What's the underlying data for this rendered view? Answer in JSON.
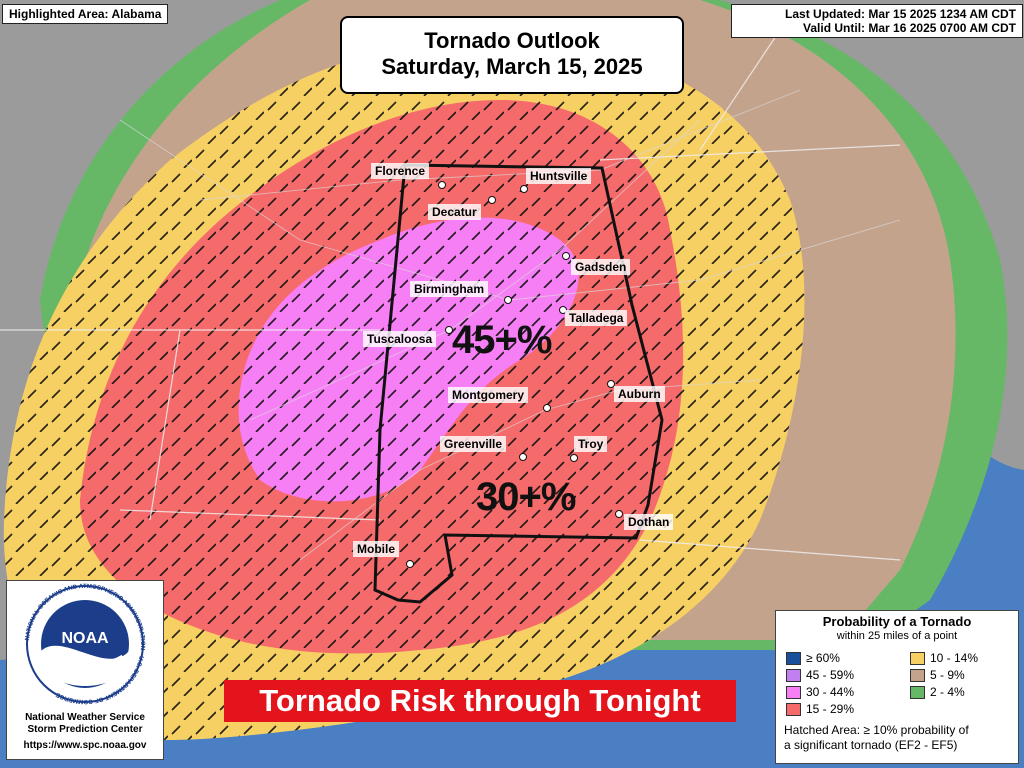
{
  "header": {
    "highlighted_area": "Highlighted Area: Alabama",
    "last_updated": "Last Updated: Mar 15 2025 1234 AM CDT",
    "valid_until": "Valid Until: Mar 16 2025 0700 AM CDT"
  },
  "title": {
    "line1": "Tornado Outlook",
    "line2": "Saturday, March 15, 2025"
  },
  "cities": {
    "florence": "Florence",
    "huntsville": "Huntsville",
    "decatur": "Decatur",
    "gadsden": "Gadsden",
    "birmingham": "Birmingham",
    "talladega": "Talladega",
    "tuscaloosa": "Tuscaloosa",
    "montgomery": "Montgomery",
    "auburn": "Auburn",
    "greenville": "Greenville",
    "troy": "Troy",
    "dothan": "Dothan",
    "mobile": "Mobile"
  },
  "risk_labels": {
    "high": "45+%",
    "moderate": "30+%"
  },
  "logo_panel": {
    "noaa": "NOAA",
    "seal_text": "NATIONAL OCEANIC AND ATMOSPHERIC ADMINISTRATION · U.S. DEPARTMENT OF COMMERCE",
    "org_line1": "National Weather Service",
    "org_line2": "Storm Prediction Center",
    "url": "https://www.spc.noaa.gov"
  },
  "banner": {
    "text": "Tornado Risk through Tonight"
  },
  "legend": {
    "title": "Probability of a Tornado",
    "subtitle": "within 25 miles of a point",
    "items": [
      {
        "label": "≥ 60%",
        "color": "#1a4f9c"
      },
      {
        "label": "45 - 59%",
        "color": "#c27ff0"
      },
      {
        "label": "30 - 44%",
        "color": "#f77ff5"
      },
      {
        "label": "15 - 29%",
        "color": "#f56a6a"
      },
      {
        "label": "10 - 14%",
        "color": "#f7d064"
      },
      {
        "label": "5 - 9%",
        "color": "#c4a38d"
      },
      {
        "label": "2 - 4%",
        "color": "#66b866"
      }
    ],
    "hatch_note_line1": "Hatched Area: ≥ 10% probability of",
    "hatch_note_line2": "a significant tornado (EF2 - EF5)"
  }
}
